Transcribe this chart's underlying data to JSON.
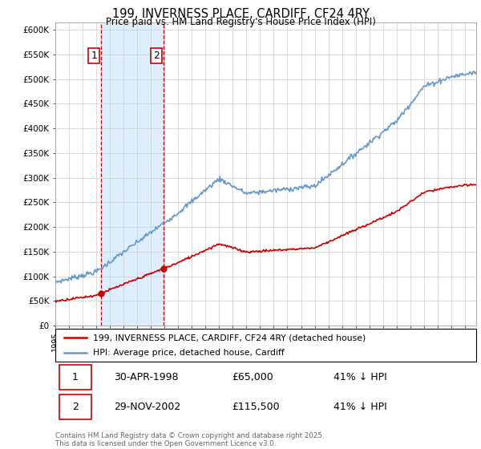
{
  "title": "199, INVERNESS PLACE, CARDIFF, CF24 4RY",
  "subtitle": "Price paid vs. HM Land Registry's House Price Index (HPI)",
  "ylim": [
    0,
    600000
  ],
  "xlim_start": 1995.0,
  "xlim_end": 2025.83,
  "purchase1_date": 1998.33,
  "purchase1_price": 65000,
  "purchase2_date": 2002.92,
  "purchase2_price": 115500,
  "red_line_color": "#cc0000",
  "blue_line_color": "#6699cc",
  "shade_color": "#ddeeff",
  "legend_label1": "199, INVERNESS PLACE, CARDIFF, CF24 4RY (detached house)",
  "legend_label2": "HPI: Average price, detached house, Cardiff",
  "annotation1_label": "1",
  "annotation2_label": "2",
  "table_row1": [
    "1",
    "30-APR-1998",
    "£65,000",
    "41% ↓ HPI"
  ],
  "table_row2": [
    "2",
    "29-NOV-2002",
    "£115,500",
    "41% ↓ HPI"
  ],
  "footer": "Contains HM Land Registry data © Crown copyright and database right 2025.\nThis data is licensed under the Open Government Licence v3.0.",
  "background_color": "#ffffff",
  "grid_color": "#cccccc",
  "hpi_scale": 0.59,
  "red_scale": 0.41
}
